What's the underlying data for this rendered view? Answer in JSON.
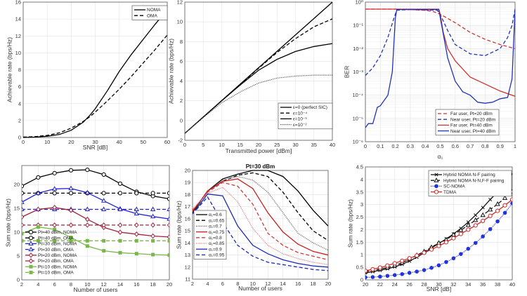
{
  "chart_data": [
    {
      "type": "line",
      "xlabel": "SNR [dB]",
      "ylabel": "Achievable rate (bps/Hz)",
      "xlim": [
        0,
        60
      ],
      "ylim": [
        0,
        16
      ],
      "xticks": [
        0,
        10,
        20,
        30,
        40,
        50,
        60
      ],
      "yticks": [
        0,
        2,
        4,
        6,
        8,
        10,
        12,
        14,
        16
      ],
      "grid": true,
      "legend": "top-right",
      "series": [
        {
          "name": "NOMA",
          "color": "#000000",
          "dash": "solid",
          "x": [
            0,
            5,
            10,
            15,
            20,
            25,
            28,
            30,
            35,
            40,
            45,
            50,
            55,
            60
          ],
          "values": [
            0,
            0.05,
            0.15,
            0.35,
            0.85,
            1.8,
            2.7,
            3.4,
            5.5,
            7.8,
            9.8,
            11.6,
            13.4,
            15.1
          ]
        },
        {
          "name": "OMA",
          "color": "#000000",
          "dash": "dashed",
          "x": [
            0,
            5,
            10,
            15,
            20,
            25,
            28,
            30,
            35,
            40,
            45,
            50,
            55,
            60
          ],
          "values": [
            0.05,
            0.1,
            0.25,
            0.55,
            1.1,
            1.9,
            2.5,
            3,
            4.3,
            5.7,
            7.2,
            8.8,
            10.4,
            12.1
          ]
        }
      ]
    },
    {
      "type": "line",
      "xlabel": "Transmitted power [dBm]",
      "ylabel": "Achievable rate (bps/Hz)",
      "xlim": [
        0,
        40
      ],
      "ylim": [
        -2,
        12
      ],
      "xticks": [
        0,
        5,
        10,
        15,
        20,
        25,
        30,
        35,
        40
      ],
      "yticks": [
        -2,
        0,
        2,
        4,
        6,
        8,
        10,
        12
      ],
      "grid": true,
      "legend": "bottom-right",
      "series": [
        {
          "name": "ε=0 (perfect SIC)",
          "color": "#000000",
          "dash": "solid",
          "x": [
            0,
            40
          ],
          "values": [
            -1.3,
            12
          ]
        },
        {
          "name": "ε=10⁻⁴",
          "color": "#000000",
          "dash": "dashed",
          "x": [
            0,
            10,
            20,
            25,
            30,
            35,
            40
          ],
          "values": [
            -1.3,
            2,
            5.3,
            6.9,
            8.3,
            9.5,
            10.3
          ]
        },
        {
          "name": "ε=10⁻³",
          "color": "#000000",
          "dash": "solid",
          "x": [
            0,
            10,
            15,
            20,
            25,
            30,
            35,
            40
          ],
          "values": [
            -1.3,
            2,
            3.6,
            5.1,
            6.2,
            7,
            7.5,
            7.8
          ]
        },
        {
          "name": "ε=10⁻²",
          "color": "#555555",
          "dash": "dotted",
          "x": [
            0,
            5,
            10,
            15,
            20,
            25,
            30,
            35,
            40
          ],
          "values": [
            -1.3,
            0.3,
            1.8,
            2.9,
            3.8,
            4.3,
            4.5,
            4.6,
            4.6
          ]
        }
      ]
    },
    {
      "type": "line",
      "yscale": "log",
      "xlabel": "α₁",
      "ylabel": "BER",
      "xlim": [
        0,
        1
      ],
      "ylim": [
        1e-06,
        1
      ],
      "xticks": [
        0,
        0.1,
        0.2,
        0.3,
        0.4,
        0.5,
        0.6,
        0.7,
        0.8,
        0.9,
        1
      ],
      "xtick_labels": [
        "0",
        "0.1",
        "0.2",
        "0.3",
        "0.4",
        "0.5",
        "0.6",
        "0.7",
        "0.8",
        "0.9",
        "1"
      ],
      "yticks": [
        1e-06,
        1e-05,
        0.0001,
        0.001,
        0.01,
        0.1,
        1
      ],
      "ytick_labels": [
        "10⁻⁶",
        "10⁻⁵",
        "10⁻⁴",
        "10⁻³",
        "10⁻²",
        "10⁻¹",
        "10⁰"
      ],
      "grid": true,
      "legend": "bottom-right",
      "series": [
        {
          "name": "Far user, Pt=20 dBm",
          "color": "#d03030",
          "dash": "dashed",
          "x": [
            0,
            0.2,
            0.3,
            0.4,
            0.45,
            0.5,
            0.55,
            0.6,
            0.7,
            0.8,
            0.9,
            1
          ],
          "values": [
            0.5,
            0.5,
            0.48,
            0.44,
            0.4,
            0.3,
            0.2,
            0.13,
            0.05,
            0.025,
            0.015,
            0.01
          ]
        },
        {
          "name": "Near user, Pt=20 dBm",
          "color": "#2233bb",
          "dash": "dashed",
          "x": [
            0,
            0.05,
            0.1,
            0.15,
            0.19,
            0.21,
            0.3,
            0.48,
            0.5,
            0.55,
            0.6,
            0.7,
            0.8,
            0.9,
            0.95,
            0.98,
            1
          ],
          "values": [
            0.0007,
            0.0015,
            0.005,
            0.03,
            0.2,
            0.45,
            0.48,
            0.45,
            0.3,
            0.06,
            0.015,
            0.006,
            0.005,
            0.01,
            0.03,
            0.1,
            0.5
          ]
        },
        {
          "name": "Far user, Pt=40 dBm",
          "color": "#d03030",
          "dash": "solid",
          "x": [
            0,
            0.49,
            0.5,
            0.52,
            0.55,
            0.6,
            0.7,
            0.8,
            0.9,
            1
          ],
          "values": [
            0.5,
            0.5,
            0.3,
            0.05,
            0.01,
            0.003,
            0.0006,
            0.0003,
            0.00015,
            9e-05
          ]
        },
        {
          "name": "Near user, Pt=40 dBm",
          "color": "#2233bb",
          "dash": "solid",
          "x": [
            0,
            0.02,
            0.05,
            0.08,
            0.1,
            0.15,
            0.18,
            0.2,
            0.21,
            0.49,
            0.51,
            0.55,
            0.6,
            0.65,
            0.7,
            0.75,
            0.8,
            0.85,
            0.9,
            0.95,
            0.98,
            1
          ],
          "values": [
            4e-06,
            6e-06,
            6e-06,
            3e-05,
            3.5e-05,
            0.0001,
            0.001,
            0.2,
            0.48,
            0.48,
            0.1,
            0.004,
            0.0004,
            0.00014,
            0.0001,
            5e-05,
            4.5e-05,
            5e-05,
            7e-05,
            8e-05,
            0.0005,
            0.5
          ]
        }
      ]
    },
    {
      "type": "line",
      "xlabel": "Number of users",
      "ylabel": "Sum rate (bps/Hz)",
      "xlim": [
        2,
        20
      ],
      "ylim": [
        0,
        24
      ],
      "xticks": [
        2,
        4,
        6,
        8,
        10,
        12,
        14,
        16,
        18,
        20
      ],
      "yticks": [
        0,
        5,
        10,
        15,
        20
      ],
      "grid": true,
      "legend": "bottom-left",
      "x": [
        2,
        4,
        6,
        8,
        10,
        12,
        14,
        16,
        18,
        20
      ],
      "series": [
        {
          "name": "Pt=40 dBm, NOMA",
          "color": "#000000",
          "dash": "solid",
          "marker": "circle-open",
          "values": [
            19.7,
            21.5,
            22.4,
            23,
            23.1,
            22.1,
            20.2,
            18.5,
            17.6,
            17
          ]
        },
        {
          "name": "Pt=40 dBm, OMA",
          "color": "#000000",
          "dash": "dashed",
          "marker": "circle-open",
          "values": [
            18.2,
            18.2,
            18.2,
            18.2,
            18.2,
            18.2,
            18.2,
            18.2,
            18.2,
            18.2
          ]
        },
        {
          "name": "Pt=30 dBm, NOMA",
          "color": "#2222cc",
          "dash": "solid",
          "marker": "triangle-open",
          "values": [
            16.3,
            18.2,
            19.1,
            19.2,
            18.3,
            16.6,
            14.9,
            13.9,
            13.3,
            12.8
          ]
        },
        {
          "name": "Pt=30 dBm, OMA",
          "color": "#2222cc",
          "dash": "dashed",
          "marker": "triangle-open",
          "values": [
            14.8,
            14.8,
            14.8,
            14.8,
            14.8,
            14.8,
            14.8,
            14.8,
            14.8,
            14.8
          ]
        },
        {
          "name": "Pt=20 dBm, NOMA",
          "color": "#a0203c",
          "dash": "solid",
          "marker": "diamond-open",
          "values": [
            13.2,
            14.8,
            15.2,
            14.6,
            12.7,
            11,
            10,
            9.6,
            9.2,
            9
          ]
        },
        {
          "name": "Pt=20 dBm, OMA",
          "color": "#a0203c",
          "dash": "dashed",
          "marker": "diamond-open",
          "values": [
            11.5,
            11.5,
            11.5,
            11.5,
            11.5,
            11.5,
            11.5,
            11.5,
            11.5,
            11.5
          ]
        },
        {
          "name": "Pt=10 dBm, NOMA",
          "color": "#7ab648",
          "dash": "solid",
          "marker": "square-filled",
          "values": [
            9.7,
            11.1,
            10.6,
            8.9,
            7.1,
            6.1,
            5.7,
            5.5,
            5.3,
            5.2
          ]
        },
        {
          "name": "Pt=10 dBm, OMA",
          "color": "#7ab648",
          "dash": "dashed",
          "marker": "square-filled",
          "values": [
            8.2,
            8.2,
            8.2,
            8.2,
            8.2,
            8.2,
            8.2,
            8.2,
            8.2,
            8.2
          ]
        }
      ]
    },
    {
      "type": "line",
      "title": "Pt=30 dBm",
      "xlabel": "Number of users",
      "ylabel": "Sum rate (bps/Hz)",
      "xlim": [
        2,
        20
      ],
      "ylim": [
        11,
        20
      ],
      "xticks": [
        2,
        4,
        6,
        8,
        10,
        12,
        14,
        16,
        18,
        20
      ],
      "yticks": [
        11,
        12,
        13,
        14,
        15,
        16,
        17,
        18,
        19,
        20
      ],
      "grid": true,
      "legend": "bottom-left",
      "x": [
        2,
        4,
        6,
        8,
        10,
        12,
        14,
        16,
        18,
        20
      ],
      "series": [
        {
          "name": "α₁=0.6",
          "color": "#000000",
          "dash": "solid",
          "values": [
            16.5,
            18.3,
            19.3,
            19.7,
            20,
            20,
            19.5,
            18.3,
            16.7,
            15.4
          ]
        },
        {
          "name": "α₁=0.65",
          "color": "#000000",
          "dash": "dashed",
          "values": [
            16.5,
            18.3,
            19.1,
            19.6,
            19.8,
            19.5,
            18.2,
            16.5,
            15,
            14.2
          ]
        },
        {
          "name": "α₁=0.7",
          "color": "#666666",
          "dash": "dotted",
          "values": [
            16.6,
            18.3,
            19.2,
            19.5,
            19.2,
            18.2,
            16.5,
            14.8,
            14,
            13.4
          ]
        },
        {
          "name": "α₁=0.75",
          "color": "#c81e1e",
          "dash": "solid",
          "values": [
            16.6,
            18.3,
            19.1,
            19.3,
            18.5,
            16.5,
            14.9,
            13.9,
            13.3,
            13
          ]
        },
        {
          "name": "α₁=0.8",
          "color": "#d03a3a",
          "dash": "dashed",
          "values": [
            16.7,
            18.2,
            19,
            18.7,
            17.2,
            14.8,
            13.8,
            13.2,
            12.9,
            12.6
          ]
        },
        {
          "name": "α₁=0.85",
          "color": "#e07a7a",
          "dash": "dotted",
          "values": [
            16.8,
            18.1,
            18.6,
            17.4,
            15.2,
            13.8,
            13.1,
            12.7,
            12.4,
            12.2
          ]
        },
        {
          "name": "α₁=0.9",
          "color": "#1a2ab0",
          "dash": "solid",
          "values": [
            16.4,
            18.05,
            17.9,
            15.4,
            13.8,
            13.1,
            12.6,
            12.3,
            12.1,
            12
          ]
        },
        {
          "name": "α₁=0.95",
          "color": "#1a2ab0",
          "dash": "dashed",
          "values": [
            16.4,
            17.8,
            15.7,
            13.8,
            12.9,
            12.4,
            12.2,
            12,
            11.8,
            11.7
          ]
        }
      ]
    },
    {
      "type": "line",
      "xlabel": "SNR [dB]",
      "ylabel": "Sum rate (bps/Hz)",
      "xlim": [
        20,
        40
      ],
      "ylim": [
        0,
        4.5
      ],
      "xticks": [
        20,
        22,
        24,
        26,
        28,
        30,
        32,
        34,
        36,
        38,
        40
      ],
      "yticks": [
        0,
        0.5,
        1,
        1.5,
        2,
        2.5,
        3,
        3.5,
        4,
        4.5
      ],
      "grid": true,
      "legend": "top-right",
      "x": [
        20,
        21,
        22,
        23,
        24,
        25,
        26,
        27,
        28,
        29,
        30,
        31,
        32,
        33,
        34,
        35,
        36,
        37,
        38,
        39,
        40
      ],
      "series": [
        {
          "name": "Hybrid NOMA N-F pairing",
          "color": "#111111",
          "dash": "solid",
          "marker": "x",
          "values": [
            0.28,
            0.33,
            0.38,
            0.44,
            0.52,
            0.62,
            0.75,
            0.9,
            1.08,
            1.27,
            1.45,
            1.63,
            1.83,
            2.05,
            2.3,
            2.58,
            2.88,
            3.2,
            3.5,
            3.85,
            4.22
          ]
        },
        {
          "name": "Hybrid NOMA N-N,F-F pairing",
          "color": "#111111",
          "dash": "dashed",
          "marker": "triangle-open",
          "values": [
            0.33,
            0.37,
            0.43,
            0.49,
            0.57,
            0.68,
            0.82,
            0.98,
            1.13,
            1.3,
            1.47,
            1.6,
            1.8,
            1.98,
            2.18,
            2.38,
            2.58,
            2.8,
            3.02,
            3.26,
            3.52
          ]
        },
        {
          "name": "SC-NOMA",
          "color": "#2233dd",
          "dash": "dotted",
          "marker": "circle-filled",
          "values": [
            0.1,
            0.11,
            0.13,
            0.16,
            0.19,
            0.23,
            0.28,
            0.33,
            0.39,
            0.48,
            0.58,
            0.71,
            0.86,
            1.03,
            1.24,
            1.47,
            1.73,
            2.02,
            2.33,
            2.67,
            3.05
          ]
        },
        {
          "name": "TDMA",
          "color": "#d02828",
          "dash": "solid",
          "marker": "circle-open",
          "values": [
            0.36,
            0.42,
            0.49,
            0.57,
            0.66,
            0.76,
            0.86,
            0.97,
            1.08,
            1.21,
            1.35,
            1.5,
            1.66,
            1.83,
            2,
            2.17,
            2.35,
            2.55,
            2.75,
            2.97,
            3.2
          ]
        }
      ]
    }
  ]
}
